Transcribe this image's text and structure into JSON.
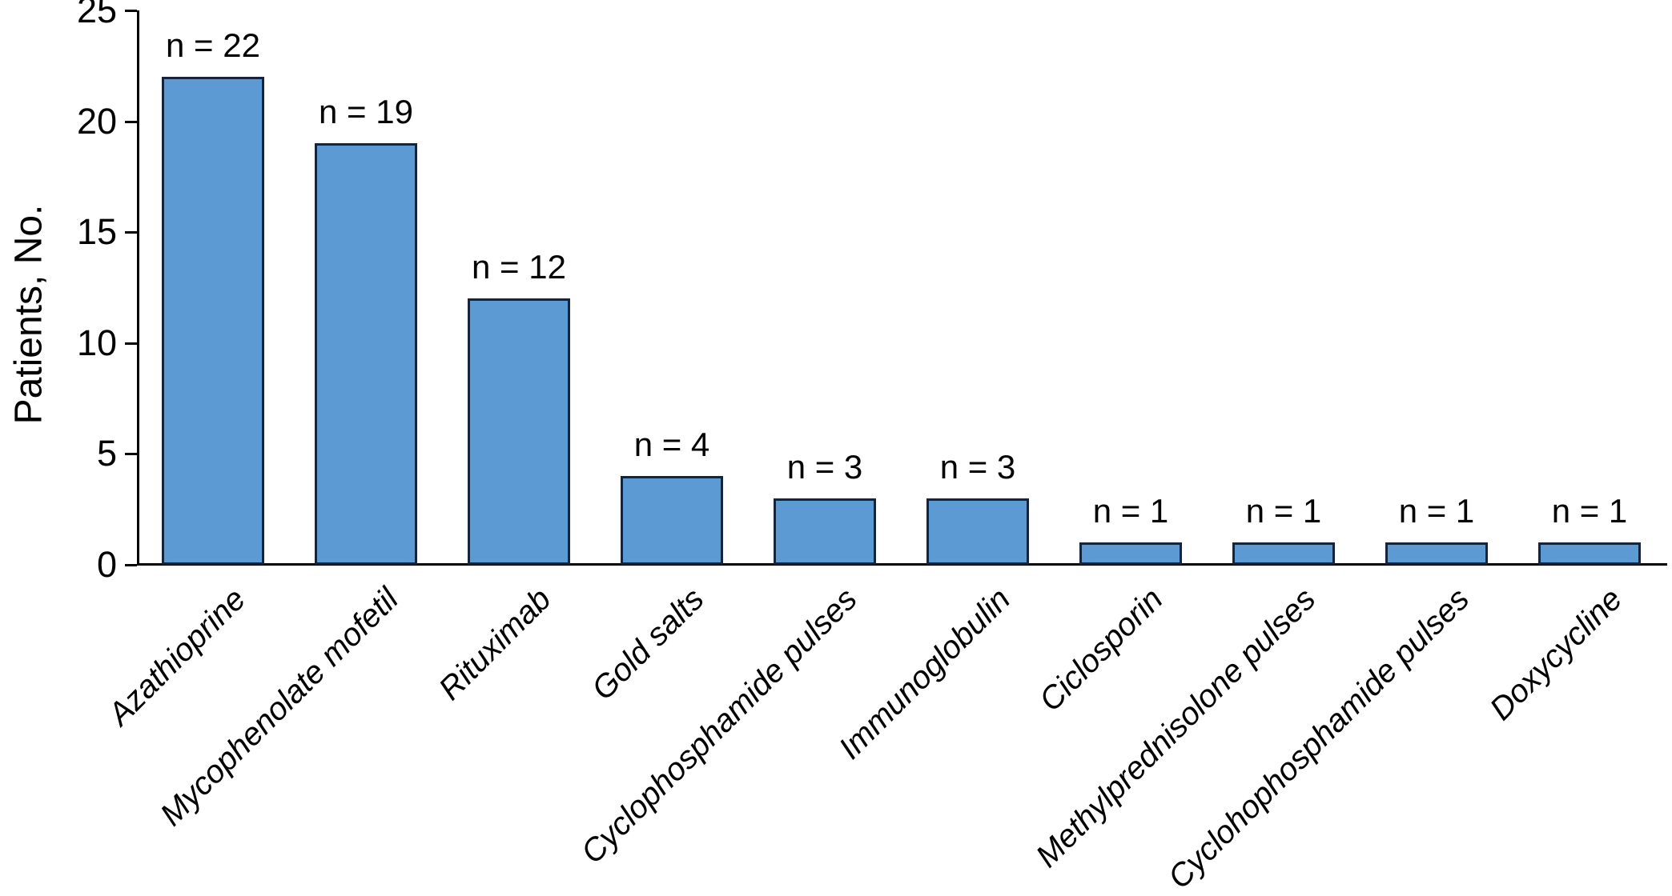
{
  "chart_data": {
    "type": "bar",
    "title": "",
    "xlabel": "",
    "ylabel": "Patients, No.",
    "ylim": [
      0,
      25
    ],
    "yticks": [
      0,
      5,
      10,
      15,
      20,
      25
    ],
    "ytick_labels": [
      "0",
      "5",
      "10",
      "15",
      "20",
      "25"
    ],
    "grid": false,
    "legend_position": "none",
    "categories": [
      "Azathioprine",
      "Mycophenolate mofetil",
      "Rituximab",
      "Gold salts",
      "Cyclophosphamide pulses",
      "Immunoglobulin",
      "Ciclosporin",
      "Methylprednisolone pulses",
      "Cyclohophosphamide pulses",
      "Doxycycline"
    ],
    "values": [
      22,
      19,
      12,
      4,
      3,
      3,
      1,
      1,
      1,
      1
    ],
    "bar_labels": [
      "n = 22",
      "n = 19",
      "n = 12",
      "n = 4",
      "n = 3",
      "n = 3",
      "n = 1",
      "n = 1",
      "n = 1",
      "n = 1"
    ],
    "colors": {
      "background": "#FFFFFF",
      "bar_fill": "#5B9AD2",
      "bar_edge": "#16233D",
      "axis": "#000000",
      "text": "#000000"
    }
  }
}
